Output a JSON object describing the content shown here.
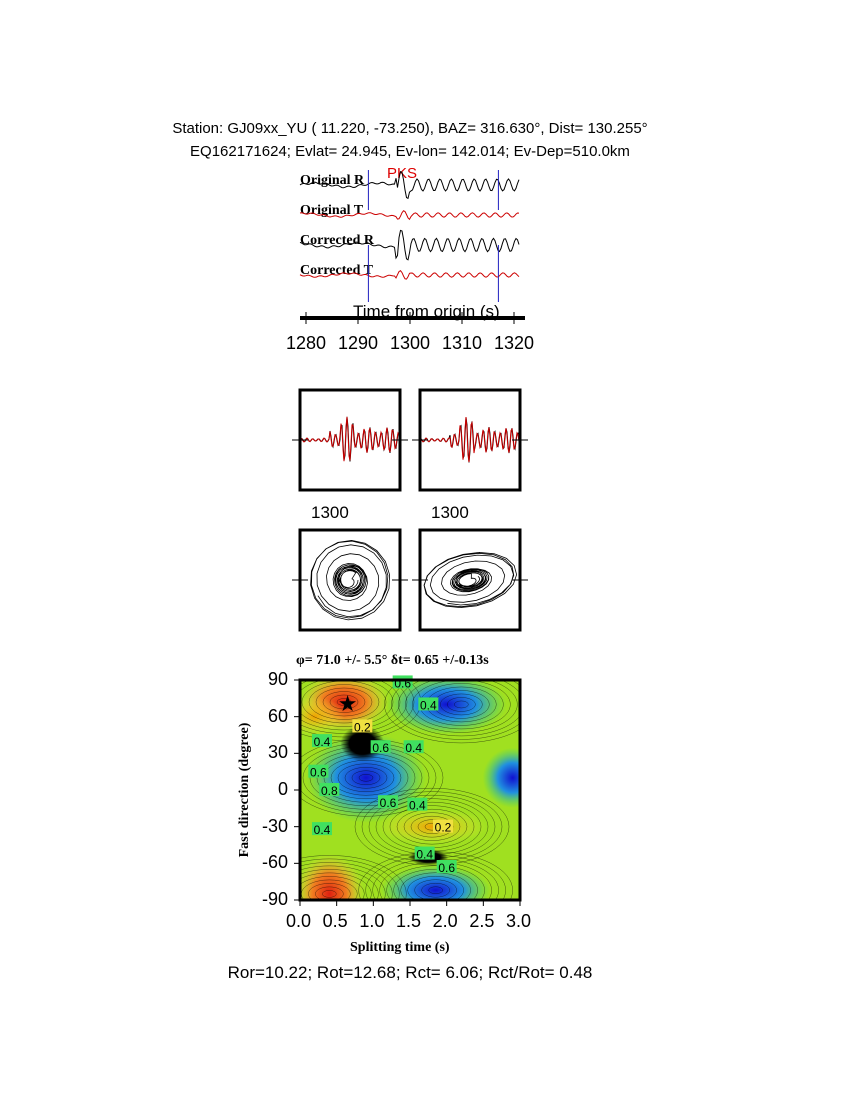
{
  "header": {
    "line1": "Station: GJ09xx_YU (  11.220,  -73.250), BAZ=  316.630°, Dist=  130.255°",
    "line2": "EQ162171624; Evlat=  24.945, Ev-lon= 142.014; Ev-Dep=510.0km"
  },
  "chart_data": [
    {
      "type": "line",
      "phase_label": "PKS",
      "traces": [
        "Original R",
        "Original T",
        "Corrected R",
        "Corrected T"
      ],
      "trace_colors": {
        "R": "#000000",
        "T": "#cc0000"
      },
      "window_markers_s": [
        1292,
        1317
      ],
      "xlabel": "Time from origin (s)",
      "xticks": [
        "1280",
        "1290",
        "1300",
        "1310",
        "1320"
      ],
      "xlim": [
        1280,
        1322
      ]
    },
    {
      "type": "line",
      "panel": "waveform comparison",
      "xtick_label_left": "1300",
      "xtick_label_right": "1300"
    },
    {
      "type": "scatter",
      "panel": "particle motion"
    },
    {
      "type": "heatmap",
      "title": "φ= 71.0 +/- 5.5° δt= 0.65 +/-0.13s",
      "xlabel": "Splitting time (s)",
      "ylabel": "Fast direction (degree)",
      "xlim": [
        0,
        3
      ],
      "ylim": [
        -90,
        90
      ],
      "xticks": [
        "0.0",
        "0.5",
        "1.0",
        "1.5",
        "2.0",
        "2.5",
        "3.0"
      ],
      "yticks": [
        "90",
        "60",
        "30",
        "0",
        "-30",
        "-60",
        "-90"
      ],
      "best_fit": {
        "dt": 0.65,
        "phi": 71
      },
      "contour_labels": [
        {
          "text": "0.2",
          "x": 0.85,
          "y": 52
        },
        {
          "text": "0.4",
          "x": 0.3,
          "y": 40
        },
        {
          "text": "0.6",
          "x": 1.1,
          "y": 35
        },
        {
          "text": "0.4",
          "x": 1.55,
          "y": 35
        },
        {
          "text": "0.4",
          "x": 1.75,
          "y": 70
        },
        {
          "text": "0.6",
          "x": 1.4,
          "y": 88
        },
        {
          "text": "0.6",
          "x": 0.25,
          "y": 15
        },
        {
          "text": "0.8",
          "x": 0.4,
          "y": 0
        },
        {
          "text": "0.6",
          "x": 1.2,
          "y": -10
        },
        {
          "text": "0.4",
          "x": 1.6,
          "y": -12
        },
        {
          "text": "0.4",
          "x": 0.3,
          "y": -32
        },
        {
          "text": "0.2",
          "x": 1.95,
          "y": -30
        },
        {
          "text": "0.4",
          "x": 1.7,
          "y": -52
        },
        {
          "text": "0.6",
          "x": 2.0,
          "y": -63
        }
      ]
    }
  ],
  "footer": "Ror=10.22; Rot=12.68; Rct= 6.06; Rct/Rot= 0.48"
}
